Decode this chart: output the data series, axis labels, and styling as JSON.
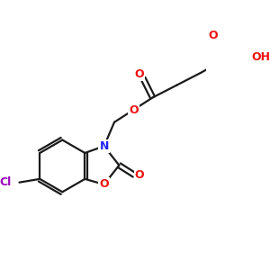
{
  "bg_color": "#ffffff",
  "bond_color": "#1a1a1a",
  "N_color": "#2020ff",
  "O_color": "#ee1111",
  "Cl_color": "#9900bb",
  "lw": 1.6,
  "fig_size": [
    3.0,
    3.0
  ],
  "dpi": 100,
  "xlim": [
    0,
    300
  ],
  "ylim": [
    0,
    300
  ]
}
